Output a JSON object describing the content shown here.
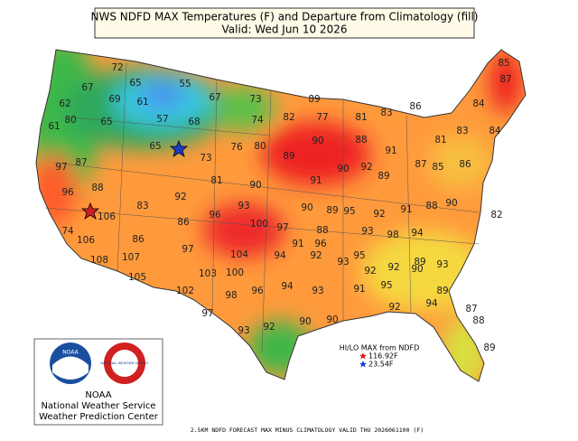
{
  "title": "NWS NDFD MAX Temperatures (F) and Departure from Climatology (fill)",
  "subtitle": "Valid: Wed Jun 10 2026",
  "temperatures": [
    55,
    72,
    65,
    67,
    69,
    61,
    67,
    73,
    89,
    62,
    57,
    68,
    74,
    82,
    77,
    81,
    83,
    84,
    87,
    85,
    80,
    65,
    76,
    80,
    90,
    88,
    86,
    81,
    83,
    84,
    61,
    65,
    73,
    89,
    90,
    92,
    91,
    87,
    85,
    97,
    87,
    81,
    90,
    91,
    89,
    86,
    96,
    88,
    92,
    96,
    93,
    90,
    89,
    95,
    92,
    91,
    88,
    90,
    82,
    106,
    83,
    86,
    100,
    97,
    88,
    93,
    98,
    94,
    74,
    106,
    86,
    97,
    104,
    91,
    92,
    95,
    92,
    89,
    93,
    108,
    107,
    103,
    100,
    94,
    93,
    92,
    90,
    105,
    102,
    98,
    96,
    94,
    93,
    91,
    95,
    97,
    93,
    92,
    90,
    90,
    94,
    87,
    88,
    96,
    92,
    89,
    89
  ],
  "hilo": {
    "title": "HI/LO MAX from NDFD",
    "high": "116.92F",
    "low": "23.54F"
  },
  "logo": {
    "noaa": "NOAA",
    "nws": "NATIONAL WEATHER SERVICE",
    "line1": "NOAA",
    "line2": "National Weather Service",
    "line3": "Weather Prediction Center"
  },
  "footer": "2.5KM NDFD FORECAST MAX MINUS CLIMATOLOGY VALID THU 2026061100 (F)"
}
